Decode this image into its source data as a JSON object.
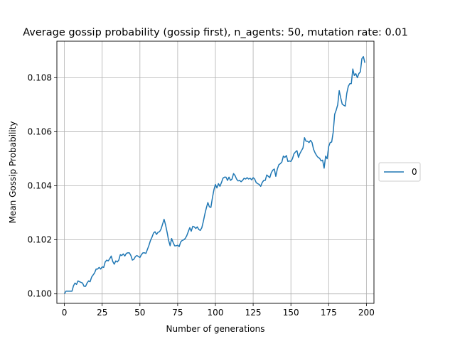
{
  "chart_data": {
    "type": "line",
    "title": "Average gossip probability (gossip first), n_agents: 50, mutation rate: 0.01",
    "xlabel": "Number of generations",
    "ylabel": "Mean Gossip Probability",
    "xlim": [
      -5,
      205
    ],
    "ylim": [
      0.09965,
      0.10935
    ],
    "xticks": [
      0,
      25,
      50,
      75,
      100,
      125,
      150,
      175,
      200
    ],
    "yticks": [
      0.1,
      0.102,
      0.104,
      0.106,
      0.108
    ],
    "xtick_labels": [
      "0",
      "25",
      "50",
      "75",
      "100",
      "125",
      "150",
      "175",
      "200"
    ],
    "ytick_labels": [
      "0.100",
      "0.102",
      "0.104",
      "0.106",
      "0.108"
    ],
    "grid": true,
    "legend_position": "center-right outside",
    "series": [
      {
        "name": "0",
        "color": "#1f77b4",
        "points": [
          [
            0,
            0.1
          ],
          [
            1,
            0.1001
          ],
          [
            3,
            0.1001
          ],
          [
            5,
            0.1001
          ],
          [
            6,
            0.1003
          ],
          [
            7,
            0.1004
          ],
          [
            8,
            0.10035
          ],
          [
            9,
            0.10048
          ],
          [
            10,
            0.10045
          ],
          [
            12,
            0.1004
          ],
          [
            13,
            0.10028
          ],
          [
            14,
            0.10028
          ],
          [
            15,
            0.1004
          ],
          [
            16,
            0.10048
          ],
          [
            17,
            0.10045
          ],
          [
            18,
            0.10062
          ],
          [
            19,
            0.1007
          ],
          [
            20,
            0.10078
          ],
          [
            21,
            0.10092
          ],
          [
            22,
            0.10092
          ],
          [
            23,
            0.10098
          ],
          [
            24,
            0.10092
          ],
          [
            25,
            0.101
          ],
          [
            26,
            0.10098
          ],
          [
            27,
            0.10118
          ],
          [
            28,
            0.10125
          ],
          [
            29,
            0.10122
          ],
          [
            30,
            0.1013
          ],
          [
            31,
            0.1014
          ],
          [
            32,
            0.1012
          ],
          [
            33,
            0.1011
          ],
          [
            34,
            0.10122
          ],
          [
            35,
            0.10118
          ],
          [
            36,
            0.10125
          ],
          [
            37,
            0.10145
          ],
          [
            38,
            0.10142
          ],
          [
            39,
            0.10148
          ],
          [
            40,
            0.1014
          ],
          [
            41,
            0.1015
          ],
          [
            42,
            0.10152
          ],
          [
            43,
            0.10152
          ],
          [
            44,
            0.10142
          ],
          [
            45,
            0.10125
          ],
          [
            46,
            0.10128
          ],
          [
            47,
            0.10138
          ],
          [
            48,
            0.10142
          ],
          [
            49,
            0.10138
          ],
          [
            50,
            0.10135
          ],
          [
            51,
            0.10145
          ],
          [
            52,
            0.10152
          ],
          [
            53,
            0.10152
          ],
          [
            54,
            0.1015
          ],
          [
            55,
            0.10165
          ],
          [
            56,
            0.1018
          ],
          [
            57,
            0.10198
          ],
          [
            58,
            0.1021
          ],
          [
            59,
            0.10225
          ],
          [
            60,
            0.1023
          ],
          [
            61,
            0.1022
          ],
          [
            62,
            0.10228
          ],
          [
            63,
            0.1023
          ],
          [
            64,
            0.1024
          ],
          [
            65,
            0.10258
          ],
          [
            66,
            0.10276
          ],
          [
            67,
            0.10255
          ],
          [
            68,
            0.10228
          ],
          [
            69,
            0.10198
          ],
          [
            70,
            0.10178
          ],
          [
            71,
            0.10205
          ],
          [
            72,
            0.1019
          ],
          [
            73,
            0.10178
          ],
          [
            74,
            0.10178
          ],
          [
            75,
            0.1018
          ],
          [
            76,
            0.10175
          ],
          [
            77,
            0.10192
          ],
          [
            78,
            0.10198
          ],
          [
            79,
            0.102
          ],
          [
            80,
            0.10205
          ],
          [
            81,
            0.10215
          ],
          [
            82,
            0.1023
          ],
          [
            83,
            0.10245
          ],
          [
            84,
            0.10232
          ],
          [
            85,
            0.1025
          ],
          [
            86,
            0.10248
          ],
          [
            87,
            0.10242
          ],
          [
            88,
            0.10248
          ],
          [
            89,
            0.10238
          ],
          [
            90,
            0.10235
          ],
          [
            91,
            0.10245
          ],
          [
            92,
            0.10268
          ],
          [
            93,
            0.10295
          ],
          [
            94,
            0.10318
          ],
          [
            95,
            0.10338
          ],
          [
            96,
            0.10322
          ],
          [
            97,
            0.1032
          ],
          [
            98,
            0.10355
          ],
          [
            99,
            0.10385
          ],
          [
            100,
            0.10405
          ],
          [
            101,
            0.10392
          ],
          [
            102,
            0.10408
          ],
          [
            103,
            0.10398
          ],
          [
            104,
            0.10412
          ],
          [
            105,
            0.10428
          ],
          [
            106,
            0.10432
          ],
          [
            107,
            0.10432
          ],
          [
            108,
            0.1042
          ],
          [
            109,
            0.10432
          ],
          [
            110,
            0.1042
          ],
          [
            111,
            0.10425
          ],
          [
            112,
            0.10445
          ],
          [
            113,
            0.10438
          ],
          [
            114,
            0.10425
          ],
          [
            115,
            0.10418
          ],
          [
            116,
            0.1042
          ],
          [
            117,
            0.10415
          ],
          [
            118,
            0.1042
          ],
          [
            119,
            0.10428
          ],
          [
            120,
            0.10425
          ],
          [
            121,
            0.1043
          ],
          [
            122,
            0.10425
          ],
          [
            123,
            0.10428
          ],
          [
            124,
            0.10422
          ],
          [
            125,
            0.1043
          ],
          [
            126,
            0.10425
          ],
          [
            127,
            0.10412
          ],
          [
            128,
            0.10408
          ],
          [
            129,
            0.10405
          ],
          [
            130,
            0.10398
          ],
          [
            131,
            0.10412
          ],
          [
            132,
            0.1042
          ],
          [
            133,
            0.1042
          ],
          [
            134,
            0.1044
          ],
          [
            135,
            0.10435
          ],
          [
            136,
            0.1043
          ],
          [
            137,
            0.10448
          ],
          [
            138,
            0.10458
          ],
          [
            139,
            0.10462
          ],
          [
            140,
            0.10435
          ],
          [
            141,
            0.10462
          ],
          [
            142,
            0.10478
          ],
          [
            143,
            0.10482
          ],
          [
            144,
            0.10488
          ],
          [
            145,
            0.1051
          ],
          [
            146,
            0.10505
          ],
          [
            147,
            0.10512
          ],
          [
            148,
            0.1049
          ],
          [
            149,
            0.10492
          ],
          [
            150,
            0.1049
          ],
          [
            151,
            0.105
          ],
          [
            152,
            0.10518
          ],
          [
            153,
            0.10525
          ],
          [
            154,
            0.1053
          ],
          [
            155,
            0.10505
          ],
          [
            156,
            0.1052
          ],
          [
            157,
            0.1053
          ],
          [
            158,
            0.1054
          ],
          [
            159,
            0.10578
          ],
          [
            160,
            0.10565
          ],
          [
            161,
            0.10565
          ],
          [
            162,
            0.1056
          ],
          [
            163,
            0.10568
          ],
          [
            164,
            0.1056
          ],
          [
            165,
            0.10535
          ],
          [
            166,
            0.10522
          ],
          [
            167,
            0.10512
          ],
          [
            168,
            0.10505
          ],
          [
            169,
            0.10502
          ],
          [
            170,
            0.10492
          ],
          [
            171,
            0.10495
          ],
          [
            172,
            0.10465
          ],
          [
            173,
            0.1051
          ],
          [
            174,
            0.105
          ],
          [
            175,
            0.10545
          ],
          [
            176,
            0.1056
          ],
          [
            177,
            0.10562
          ],
          [
            178,
            0.10598
          ],
          [
            179,
            0.10665
          ],
          [
            180,
            0.1068
          ],
          [
            181,
            0.107
          ],
          [
            182,
            0.10752
          ],
          [
            183,
            0.10725
          ],
          [
            184,
            0.10702
          ],
          [
            185,
            0.10698
          ],
          [
            186,
            0.10695
          ],
          [
            187,
            0.10742
          ],
          [
            188,
            0.10768
          ],
          [
            189,
            0.10778
          ],
          [
            190,
            0.10778
          ],
          [
            191,
            0.10832
          ],
          [
            192,
            0.10808
          ],
          [
            193,
            0.10815
          ],
          [
            194,
            0.108
          ],
          [
            195,
            0.10815
          ],
          [
            196,
            0.10822
          ],
          [
            197,
            0.1087
          ],
          [
            198,
            0.10878
          ],
          [
            199,
            0.10855
          ]
        ]
      }
    ]
  }
}
